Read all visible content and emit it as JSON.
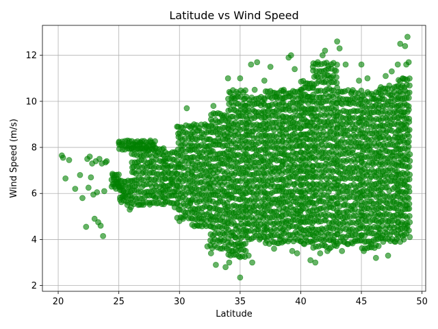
{
  "chart_data": {
    "type": "scatter",
    "title": "Latitude vs Wind Speed",
    "xlabel": "Latitude",
    "ylabel": "Wind Speed (m/s)",
    "xlim": [
      18.7,
      50.3
    ],
    "ylim": [
      1.75,
      13.3
    ],
    "xticks": [
      20,
      25,
      30,
      35,
      40,
      45,
      50
    ],
    "yticks": [
      2,
      4,
      6,
      8,
      10,
      12
    ],
    "grid": true,
    "marker_color": "#008000",
    "marker_alpha": 0.6,
    "points": [
      [
        20.3,
        7.65
      ],
      [
        20.4,
        7.55
      ],
      [
        20.6,
        6.65
      ],
      [
        20.9,
        7.45
      ],
      [
        21.4,
        6.2
      ],
      [
        21.8,
        6.8
      ],
      [
        22.0,
        5.8
      ],
      [
        22.3,
        4.55
      ],
      [
        22.4,
        7.5
      ],
      [
        22.5,
        6.25
      ],
      [
        22.6,
        7.6
      ],
      [
        22.7,
        6.7
      ],
      [
        22.8,
        7.3
      ],
      [
        22.9,
        5.95
      ],
      [
        23.0,
        4.9
      ],
      [
        23.1,
        7.4
      ],
      [
        23.2,
        6.05
      ],
      [
        23.3,
        4.75
      ],
      [
        23.4,
        7.5
      ],
      [
        23.5,
        4.6
      ],
      [
        23.6,
        7.3
      ],
      [
        23.7,
        4.15
      ],
      [
        23.8,
        6.1
      ],
      [
        23.9,
        7.35
      ],
      [
        24.0,
        7.4
      ],
      [
        24.5,
        6.8
      ],
      [
        24.6,
        6.6
      ],
      [
        24.8,
        6.5
      ],
      [
        24.9,
        6.4
      ],
      [
        25.0,
        8.2
      ],
      [
        25.1,
        6.3
      ],
      [
        25.3,
        8.15
      ],
      [
        25.4,
        6.1
      ],
      [
        25.5,
        5.9
      ],
      [
        25.7,
        5.5
      ],
      [
        25.8,
        8.2
      ],
      [
        25.9,
        5.3
      ],
      [
        26.0,
        5.4
      ],
      [
        26.2,
        8.15
      ],
      [
        26.5,
        8.1
      ],
      [
        26.6,
        5.5
      ],
      [
        26.8,
        8.2
      ],
      [
        27.0,
        5.6
      ],
      [
        27.3,
        8.0
      ],
      [
        27.5,
        5.6
      ],
      [
        27.6,
        8.3
      ],
      [
        27.8,
        8.1
      ],
      [
        28.0,
        5.8
      ],
      [
        28.2,
        7.8
      ],
      [
        28.5,
        6.0
      ],
      [
        28.8,
        7.5
      ],
      [
        29.0,
        7.2
      ],
      [
        29.4,
        6.5
      ],
      [
        29.6,
        5.4
      ],
      [
        29.8,
        8.9
      ],
      [
        30.0,
        4.8
      ],
      [
        30.3,
        4.9
      ],
      [
        30.6,
        9.7
      ],
      [
        30.9,
        5.6
      ],
      [
        31.2,
        9.0
      ],
      [
        31.5,
        4.6
      ],
      [
        31.8,
        4.9
      ],
      [
        32.1,
        9.0
      ],
      [
        32.3,
        3.7
      ],
      [
        32.6,
        3.4
      ],
      [
        32.8,
        9.8
      ],
      [
        33.0,
        2.9
      ],
      [
        33.3,
        3.9
      ],
      [
        33.6,
        9.3
      ],
      [
        33.8,
        2.8
      ],
      [
        34.0,
        11.0
      ],
      [
        34.1,
        3.0
      ],
      [
        34.4,
        10.2
      ],
      [
        34.6,
        4.1
      ],
      [
        34.9,
        3.7
      ],
      [
        35.0,
        2.35
      ],
      [
        35.0,
        11.0
      ],
      [
        35.1,
        3.75
      ],
      [
        35.4,
        9.8
      ],
      [
        35.7,
        3.3
      ],
      [
        35.9,
        11.6
      ],
      [
        36.0,
        3.0
      ],
      [
        36.2,
        10.5
      ],
      [
        36.4,
        11.7
      ],
      [
        36.6,
        4.0
      ],
      [
        36.8,
        10.0
      ],
      [
        37.0,
        10.9
      ],
      [
        37.2,
        4.5
      ],
      [
        37.5,
        11.5
      ],
      [
        37.8,
        3.6
      ],
      [
        38.0,
        10.2
      ],
      [
        38.3,
        4.0
      ],
      [
        38.6,
        10.5
      ],
      [
        38.8,
        4.8
      ],
      [
        39.0,
        11.9
      ],
      [
        39.2,
        12.0
      ],
      [
        39.3,
        3.5
      ],
      [
        39.5,
        11.4
      ],
      [
        39.7,
        3.4
      ],
      [
        40.0,
        10.5
      ],
      [
        40.3,
        3.8
      ],
      [
        40.6,
        10.2
      ],
      [
        40.8,
        3.1
      ],
      [
        41.0,
        11.5
      ],
      [
        41.2,
        3.0
      ],
      [
        41.4,
        11.7
      ],
      [
        41.6,
        3.4
      ],
      [
        41.8,
        12.0
      ],
      [
        42.0,
        12.2
      ],
      [
        42.2,
        3.5
      ],
      [
        42.4,
        11.0
      ],
      [
        42.7,
        3.9
      ],
      [
        43.0,
        12.6
      ],
      [
        43.2,
        12.3
      ],
      [
        43.4,
        3.5
      ],
      [
        43.7,
        11.6
      ],
      [
        43.9,
        3.8
      ],
      [
        44.2,
        10.4
      ],
      [
        44.5,
        4.0
      ],
      [
        44.8,
        10.9
      ],
      [
        45.0,
        11.6
      ],
      [
        45.2,
        3.5
      ],
      [
        45.5,
        11.0
      ],
      [
        45.8,
        3.8
      ],
      [
        46.0,
        10.1
      ],
      [
        46.2,
        3.2
      ],
      [
        46.5,
        10.5
      ],
      [
        46.8,
        3.9
      ],
      [
        47.0,
        11.1
      ],
      [
        47.2,
        3.3
      ],
      [
        47.5,
        11.3
      ],
      [
        47.8,
        3.9
      ],
      [
        48.0,
        11.6
      ],
      [
        48.2,
        12.5
      ],
      [
        48.4,
        11.0
      ],
      [
        48.6,
        12.4
      ],
      [
        48.7,
        11.6
      ],
      [
        48.8,
        12.8
      ],
      [
        48.9,
        11.7
      ],
      [
        48.2,
        3.9
      ],
      [
        48.5,
        4.0
      ],
      [
        48.8,
        4.6
      ]
    ],
    "bands": [
      [
        24.4,
        25.0,
        6.2,
        6.9
      ],
      [
        25.0,
        26.0,
        5.6,
        6.6
      ],
      [
        25.0,
        28.0,
        7.9,
        8.3
      ],
      [
        26.0,
        28.8,
        5.5,
        8.0
      ],
      [
        28.8,
        29.8,
        5.5,
        7.8
      ],
      [
        29.8,
        31.0,
        4.9,
        9.0
      ],
      [
        31.0,
        32.5,
        4.5,
        9.0
      ],
      [
        32.5,
        34.0,
        3.6,
        9.5
      ],
      [
        34.0,
        35.5,
        3.2,
        10.5
      ],
      [
        35.5,
        37.0,
        4.0,
        10.2
      ],
      [
        37.0,
        38.5,
        3.8,
        10.5
      ],
      [
        38.5,
        40.0,
        3.9,
        10.5
      ],
      [
        40.0,
        41.0,
        3.8,
        10.9
      ],
      [
        41.0,
        43.0,
        3.6,
        11.7
      ],
      [
        43.0,
        45.0,
        3.8,
        10.5
      ],
      [
        45.0,
        46.5,
        3.6,
        10.4
      ],
      [
        46.5,
        48.0,
        3.9,
        10.7
      ],
      [
        48.0,
        49.0,
        4.1,
        11.0
      ]
    ]
  }
}
